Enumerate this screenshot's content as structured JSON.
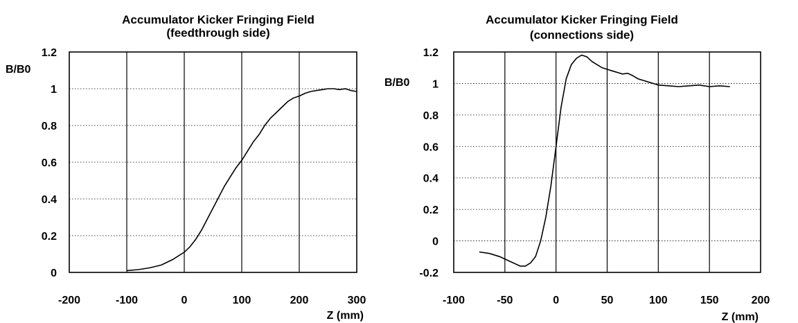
{
  "chart_data": [
    {
      "type": "line",
      "title": "Accumulator Kicker Fringing Field",
      "subtitle": "(feedthrough side)",
      "xlabel": "Z (mm)",
      "ylabel": "B/B0",
      "xlim": [
        -200,
        300
      ],
      "ylim": [
        0,
        1.2
      ],
      "x_ticks": [
        "-200",
        "-100",
        "0",
        "100",
        "200",
        "300"
      ],
      "y_ticks": [
        "0",
        "0.2",
        "0.4",
        "0.6",
        "0.8",
        "1",
        "1.2"
      ],
      "grid": true,
      "series": [
        {
          "x": [
            -100,
            -80,
            -60,
            -40,
            -20,
            0,
            10,
            20,
            30,
            40,
            50,
            60,
            70,
            80,
            90,
            100,
            110,
            120,
            130,
            140,
            150,
            160,
            170,
            180,
            190,
            200,
            210,
            220,
            230,
            240,
            250,
            260,
            270,
            280,
            290,
            300
          ],
          "y": [
            0.01,
            0.015,
            0.025,
            0.04,
            0.07,
            0.11,
            0.14,
            0.18,
            0.23,
            0.29,
            0.35,
            0.41,
            0.47,
            0.52,
            0.57,
            0.61,
            0.66,
            0.71,
            0.75,
            0.8,
            0.84,
            0.87,
            0.9,
            0.93,
            0.95,
            0.96,
            0.975,
            0.985,
            0.99,
            0.995,
            1.0,
            1.0,
            0.995,
            1.0,
            0.99,
            0.985
          ]
        }
      ]
    },
    {
      "type": "line",
      "title": "Accumulator Kicker Fringing Field",
      "subtitle": "(connections side)",
      "xlabel": "Z (mm)",
      "ylabel": "B/B0",
      "xlim": [
        -100,
        200
      ],
      "ylim": [
        -0.2,
        1.2
      ],
      "x_ticks": [
        "-100",
        "-50",
        "0",
        "50",
        "100",
        "150",
        "200"
      ],
      "y_ticks": [
        "-0.2",
        "0",
        "0.2",
        "0.4",
        "0.6",
        "0.8",
        "1",
        "1.2"
      ],
      "grid": true,
      "series": [
        {
          "x": [
            -75,
            -65,
            -55,
            -45,
            -35,
            -30,
            -25,
            -20,
            -15,
            -10,
            -5,
            0,
            5,
            10,
            15,
            20,
            25,
            30,
            35,
            40,
            45,
            50,
            55,
            60,
            65,
            70,
            75,
            80,
            85,
            90,
            95,
            100,
            110,
            120,
            130,
            140,
            150,
            160,
            170
          ],
          "y": [
            -0.07,
            -0.08,
            -0.1,
            -0.13,
            -0.16,
            -0.16,
            -0.14,
            -0.1,
            0.0,
            0.15,
            0.35,
            0.6,
            0.85,
            1.03,
            1.12,
            1.16,
            1.18,
            1.17,
            1.14,
            1.12,
            1.1,
            1.09,
            1.08,
            1.07,
            1.06,
            1.065,
            1.05,
            1.03,
            1.02,
            1.01,
            1.0,
            0.99,
            0.985,
            0.98,
            0.985,
            0.99,
            0.98,
            0.985,
            0.98
          ]
        }
      ]
    }
  ]
}
